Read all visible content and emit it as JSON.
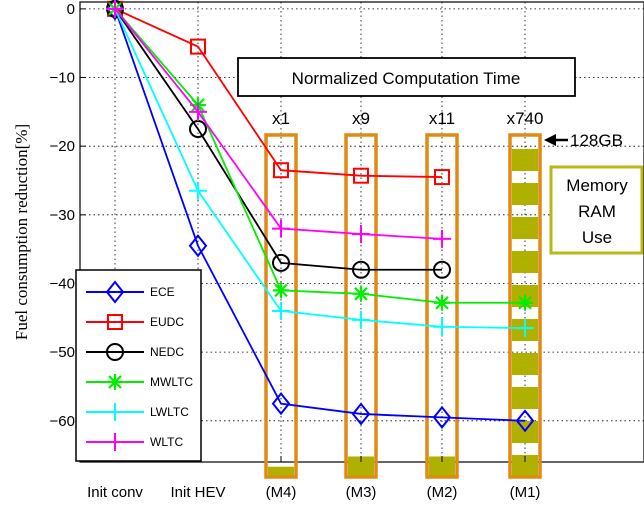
{
  "chart_data": {
    "type": "line",
    "title": "",
    "xlabel": "",
    "ylabel": "Fuel consumption reduction[%]",
    "categories": [
      "Init conv",
      "Init HEV",
      "(M4)",
      "(M3)",
      "(M2)",
      "(M1)"
    ],
    "ylim": [
      -66,
      1
    ],
    "yticks": [
      0,
      -10,
      -20,
      -30,
      -40,
      -50,
      -60
    ],
    "ytick_labels": [
      "0",
      "−10",
      "−20",
      "−30",
      "−40",
      "−50",
      "−60"
    ],
    "grid": true,
    "legend_position": "bottom-left",
    "series": [
      {
        "name": "ECE",
        "color": "#0000ff",
        "marker": "diamond",
        "values": [
          0,
          -34.5,
          -57.5,
          -59,
          -59.5,
          -60
        ]
      },
      {
        "name": "EUDC",
        "color": "#ff0000",
        "marker": "square",
        "values": [
          0,
          -5.5,
          -23.5,
          -24.3,
          -24.5,
          null
        ]
      },
      {
        "name": "NEDC",
        "color": "#000000",
        "marker": "circle",
        "values": [
          0,
          -17.5,
          -37,
          -38,
          -38,
          null
        ]
      },
      {
        "name": "MWLTC",
        "color": "#00ee00",
        "marker": "asterisk",
        "values": [
          0,
          -14,
          -41,
          -41.5,
          -42.8,
          -42.8
        ]
      },
      {
        "name": "LWLTC",
        "color": "#00ffff",
        "marker": "plus",
        "values": [
          0,
          -26.5,
          -44,
          -45.3,
          -46.3,
          -46.5
        ]
      },
      {
        "name": "WLTC",
        "color": "#ff00ff",
        "marker": "plus",
        "values": [
          0,
          -15,
          -32,
          -32.8,
          -33.5,
          null
        ]
      }
    ],
    "computation_time": {
      "title": "Normalized Computation Time",
      "labels": [
        "x1",
        "x9",
        "x11",
        "x740"
      ]
    },
    "memory": {
      "label_lines": [
        "Memory",
        "RAM",
        "Use"
      ],
      "max_label": "128GB",
      "box_color": "#b8b818",
      "column_color": "#e08a14",
      "fill_color": "#b0b000",
      "column_fill_fractions": [
        0.03,
        0.06,
        0.06,
        0.96
      ]
    }
  }
}
